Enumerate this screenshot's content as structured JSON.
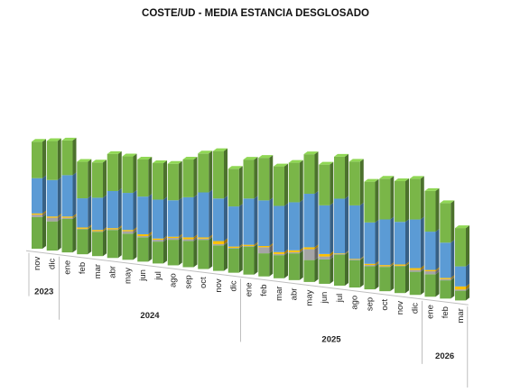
{
  "chart_data": {
    "type": "bar",
    "stacked": true,
    "three_d": true,
    "title": "COSTE/UD - MEDIA ESTANCIA DESGLOSADO",
    "grid": false,
    "legend": "none",
    "categories": [
      "nov",
      "dic",
      "ene",
      "feb",
      "mar",
      "abr",
      "may",
      "jun",
      "jul",
      "ago",
      "sep",
      "oct",
      "nov",
      "dic",
      "ene",
      "feb",
      "mar",
      "abr",
      "may",
      "jun",
      "jul",
      "ago",
      "sep",
      "oct",
      "nov",
      "dic",
      "ene",
      "feb",
      "mar"
    ],
    "year_groups": [
      {
        "label": "2023",
        "count": 2
      },
      {
        "label": "2024",
        "count": 12
      },
      {
        "label": "2025",
        "count": 12
      },
      {
        "label": "2026",
        "count": 3
      }
    ],
    "series": [
      {
        "color": "#70ad47",
        "values": [
          52,
          48,
          55,
          41,
          40,
          46,
          43,
          40,
          36,
          42,
          43,
          48,
          42,
          40,
          46,
          38,
          38,
          44,
          36,
          40,
          51,
          45,
          38,
          40,
          44,
          38,
          37,
          30,
          16
        ]
      },
      {
        "color": "#a5a5a5",
        "values": [
          4,
          6,
          2,
          1,
          1,
          1,
          4,
          2,
          3,
          3,
          3,
          2,
          2,
          1,
          1,
          10,
          2,
          2,
          18,
          5,
          1,
          1,
          2,
          1,
          1,
          3,
          5,
          2,
          2
        ]
      },
      {
        "color": "#ffc000",
        "values": [
          2,
          2,
          2,
          2,
          2,
          2,
          2,
          3,
          2,
          2,
          3,
          2,
          5,
          2,
          2,
          2,
          3,
          3,
          3,
          4,
          1,
          1,
          2,
          2,
          2,
          3,
          2,
          2,
          5
        ]
      },
      {
        "color": "#5b9bd5",
        "values": [
          58,
          60,
          68,
          48,
          53,
          61,
          61,
          62,
          64,
          60,
          66,
          74,
          70,
          66,
          76,
          75,
          76,
          79,
          88,
          80,
          90,
          88,
          68,
          75,
          70,
          80,
          63,
          58,
          33
        ]
      },
      {
        "color": "#7ab648",
        "values": [
          60,
          64,
          57,
          60,
          58,
          61,
          60,
          61,
          60,
          60,
          62,
          64,
          78,
          62,
          64,
          70,
          65,
          65,
          65,
          67,
          69,
          72,
          67,
          67,
          67,
          67,
          67,
          65,
          63
        ]
      }
    ]
  }
}
